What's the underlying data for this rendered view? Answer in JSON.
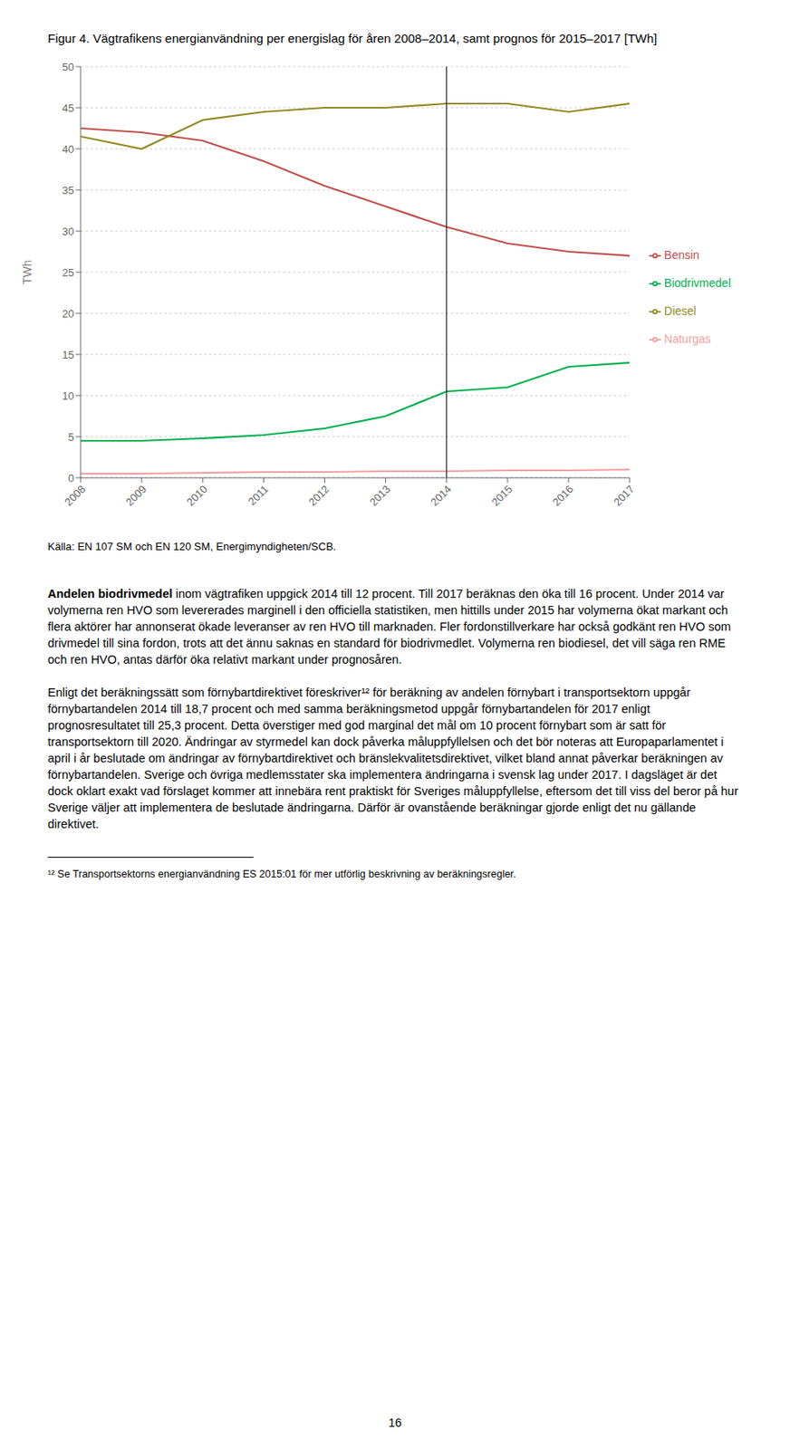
{
  "chart_data": {
    "type": "line",
    "title": "Figur 4. Vägtrafikens energianvändning per energislag för åren 2008–2014, samt prognos för 2015–2017 [TWh]",
    "x": [
      2008,
      2009,
      2010,
      2011,
      2012,
      2013,
      2014,
      2015,
      2016,
      2017
    ],
    "xlim": [
      2008,
      2017
    ],
    "xticks": [
      2008,
      2009,
      2010,
      2011,
      2012,
      2013,
      2014,
      2015,
      2016,
      2017
    ],
    "ylim": [
      0,
      50
    ],
    "yticks": [
      0,
      5,
      10,
      15,
      20,
      25,
      30,
      35,
      40,
      45,
      50
    ],
    "ylabel": "TWh",
    "series": [
      {
        "name": "Bensin",
        "color": "#c0504d",
        "values": [
          42.5,
          42.0,
          41.0,
          38.5,
          35.5,
          33.0,
          30.5,
          28.5,
          27.5,
          27.0
        ]
      },
      {
        "name": "Diesel",
        "color": "#948a22",
        "values": [
          41.5,
          40.0,
          43.5,
          44.5,
          45.0,
          45.0,
          45.5,
          45.5,
          44.5,
          45.5
        ]
      },
      {
        "name": "Biodrivmedel",
        "color": "#00b050",
        "values": [
          4.5,
          4.5,
          4.8,
          5.2,
          6.0,
          7.5,
          10.5,
          11.0,
          13.5,
          14.0
        ]
      },
      {
        "name": "Naturgas",
        "color": "#f2a0a0",
        "values": [
          0.5,
          0.5,
          0.6,
          0.7,
          0.7,
          0.8,
          0.8,
          0.9,
          0.9,
          1.0
        ]
      }
    ],
    "grid": true,
    "legend": "right",
    "vline_x": 2014,
    "annotations": [
      "Källa: EN 107 SM och EN 120 SM, Energimyndigheten/SCB.",
      "Andelen biodrivmedel",
      "inom vägtrafiken uppgick 2014 till 12 procent. Till 2017 beräknas den öka till 16 procent. Under 2014 var volymerna ren HVO som levererades marginell i den officiella statistiken, men hittills under 2015 har volymerna ökat markant och flera aktörer har annonserat ökade leveranser av ren HVO till marknaden. Fler fordonstillverkare har också godkänt ren HVO som drivmedel till sina fordon, trots att det ännu saknas en standard för biodrivmedlet. Volymerna ren biodiesel, det vill säga ren RME och ren HVO, antas därför öka relativt markant under prognosåren.",
      "Enligt det beräkningssätt som förnybartdirektivet föreskriver¹² för beräkning av andelen förnybart i transportsektorn uppgår förnybartandelen 2014 till 18,7 procent och med samma beräkningsmetod uppgår förnybartandelen för 2017 enligt prognosresultatet till 25,3 procent. Detta överstiger med god marginal det mål om 10 procent förnybart som är satt för transportsektorn till 2020. Ändringar av styrmedel kan dock påverka måluppfyllelsen och det bör noteras att Europaparlamentet i april i år beslutade om ändringar av förnybartdirektivet och bränslekvalitetsdirektivet, vilket bland annat påverkar beräkningen av förnybartandelen. Sverige och övriga medlemsstater ska implementera ändringarna i svensk lag under 2017. I dagsläget är det dock oklart exakt vad förslaget kommer att innebära rent praktiskt för Sveriges måluppfyllelse, eftersom det till viss del beror på hur Sverige väljer att implementera de beslutade ändringarna. Därför är ovanstående beräkningar gjorde enligt det nu gällande direktivet.",
      "¹² Se Transportsektorns energianvändning ES 2015:01 för mer utförlig beskrivning av beräkningsregler.",
      "16"
    ]
  }
}
